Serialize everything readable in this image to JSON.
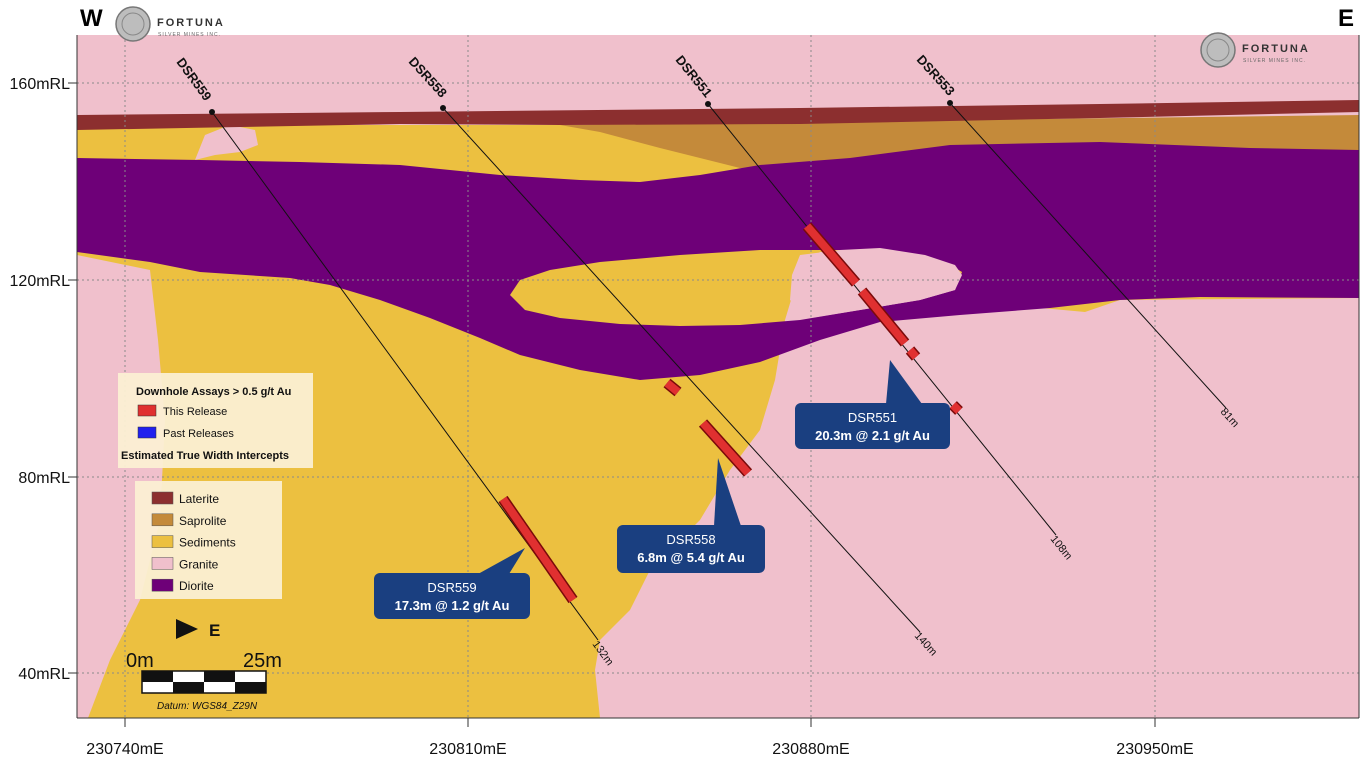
{
  "directions": {
    "west": "W",
    "east": "E"
  },
  "logo": {
    "name": "FORTUNA",
    "subtitle": "SILVER MINES INC."
  },
  "axis": {
    "y_ticks": [
      "160mRL",
      "120mRL",
      "80mRL",
      "40mRL"
    ],
    "x_ticks": [
      "230740mE",
      "230810mE",
      "230880mE",
      "230950mE"
    ]
  },
  "drillholes": [
    {
      "id": "DSR559",
      "depth": "132m"
    },
    {
      "id": "DSR558",
      "depth": "140m"
    },
    {
      "id": "DSR551",
      "depth": "108m"
    },
    {
      "id": "DSR553",
      "depth": "81m"
    }
  ],
  "callouts": [
    {
      "hole": "DSR559",
      "intercept": "17.3m @ 1.2 g/t Au"
    },
    {
      "hole": "DSR558",
      "intercept": "6.8m @ 5.4 g/t Au"
    },
    {
      "hole": "DSR551",
      "intercept": "20.3m @ 2.1 g/t Au"
    }
  ],
  "assay_legend": {
    "title": "Downhole Assays > 0.5 g/t Au",
    "items": [
      {
        "label": "This Release",
        "color": "#e03030"
      },
      {
        "label": "Past Releases",
        "color": "#2020ee"
      }
    ],
    "footer": "Estimated True Width Intercepts"
  },
  "lithology_legend": [
    {
      "label": "Laterite",
      "color": "#8c2f2f"
    },
    {
      "label": "Saprolite",
      "color": "#c48a3a"
    },
    {
      "label": "Sediments",
      "color": "#ecc040"
    },
    {
      "label": "Granite",
      "color": "#f0c0cc"
    },
    {
      "label": "Diorite",
      "color": "#6e0078"
    }
  ],
  "scale_bar": {
    "arrow_label": "E",
    "start": "0m",
    "end": "25m",
    "datum": "Datum: WGS84_Z29N"
  }
}
